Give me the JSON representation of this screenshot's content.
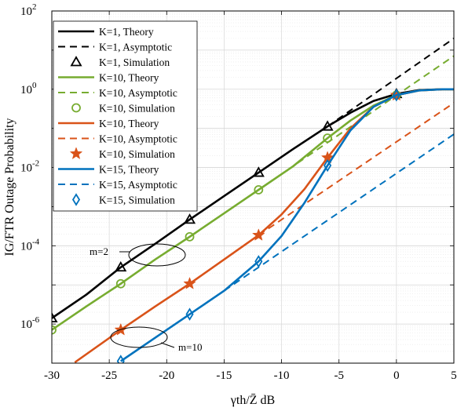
{
  "chart_data": {
    "type": "line",
    "title": "",
    "xlabel": "γth/Z̄ dB",
    "ylabel": "IG/FTR Outage Probability",
    "xlim": [
      -30,
      5
    ],
    "ylim_log10": [
      -7,
      2
    ],
    "y_scale": "log",
    "grid": true,
    "legend_placement": "top-left",
    "x_ticks": [
      "-30",
      "-25",
      "-20",
      "-15",
      "-10",
      "-5",
      "0",
      "5"
    ],
    "y_ticks": [
      {
        "base": "10",
        "exp": "2",
        "log10": 2
      },
      {
        "base": "10",
        "exp": "0",
        "log10": 0
      },
      {
        "base": "10",
        "exp": "-2",
        "log10": -2
      },
      {
        "base": "10",
        "exp": "-4",
        "log10": -4
      },
      {
        "base": "10",
        "exp": "-6",
        "log10": -6
      }
    ],
    "colors": {
      "k1": "#000000",
      "k10a": "#77ac30",
      "k10b": "#d95319",
      "k15": "#0072bd"
    },
    "series": [
      {
        "name": "K=1, Theory",
        "style": "solid",
        "color": "#000000",
        "x": [
          -30,
          -27,
          -24,
          -21,
          -18,
          -15,
          -12,
          -9,
          -6,
          -4,
          -2,
          0,
          2,
          4,
          5
        ],
        "y": [
          -5.85,
          -5.25,
          -4.55,
          -3.95,
          -3.33,
          -2.73,
          -2.13,
          -1.53,
          -0.95,
          -0.6,
          -0.3,
          -0.12,
          -0.02,
          0,
          0
        ]
      },
      {
        "name": "K=1, Asymptotic",
        "style": "dashed",
        "color": "#000000",
        "x": [
          -6,
          5
        ],
        "y": [
          -0.95,
          1.3
        ]
      },
      {
        "name": "K=1, Simulation",
        "marker": "triangle",
        "color": "#000000",
        "x": [
          -30,
          -24,
          -18,
          -12,
          -6,
          0
        ],
        "y": [
          -5.85,
          -4.55,
          -3.33,
          -2.13,
          -0.95,
          -0.12
        ]
      },
      {
        "name": "K=10, Theory",
        "style": "solid",
        "color": "#77ac30",
        "x": [
          -30,
          -27,
          -24,
          -21,
          -18,
          -15,
          -12,
          -9,
          -6,
          -4,
          -2,
          0,
          2,
          4,
          5
        ],
        "y": [
          -6.15,
          -5.55,
          -4.97,
          -4.35,
          -3.77,
          -3.17,
          -2.57,
          -1.97,
          -1.25,
          -0.8,
          -0.42,
          -0.15,
          -0.03,
          0,
          0
        ]
      },
      {
        "name": "K=10, Asymptotic",
        "style": "dashed",
        "color": "#77ac30",
        "x": [
          -12,
          5
        ],
        "y": [
          -2.57,
          0.85
        ]
      },
      {
        "name": "K=10, Simulation",
        "marker": "circle",
        "color": "#77ac30",
        "x": [
          -30,
          -24,
          -18,
          -12,
          -6,
          0
        ],
        "y": [
          -6.15,
          -4.97,
          -3.77,
          -2.57,
          -1.25,
          -0.15
        ]
      },
      {
        "name": "K=10, Theory",
        "style": "solid",
        "color": "#d95319",
        "x": [
          -28,
          -24,
          -21,
          -18,
          -15,
          -12,
          -10,
          -8,
          -6,
          -4,
          -2,
          0,
          2,
          4,
          5
        ],
        "y": [
          -6.98,
          -6.15,
          -5.55,
          -4.97,
          -4.35,
          -3.73,
          -3.2,
          -2.55,
          -1.75,
          -1.0,
          -0.45,
          -0.15,
          -0.03,
          0,
          0
        ]
      },
      {
        "name": "K=10, Asymptotic",
        "style": "dashed",
        "color": "#d95319",
        "x": [
          -12,
          5
        ],
        "y": [
          -3.73,
          -0.35
        ]
      },
      {
        "name": "K=10, Simulation",
        "marker": "star",
        "color": "#d95319",
        "x": [
          -24,
          -18,
          -12,
          -6,
          0
        ],
        "y": [
          -6.15,
          -4.97,
          -3.73,
          -1.75,
          -0.15
        ]
      },
      {
        "name": "K=15, Theory",
        "style": "solid",
        "color": "#0072bd",
        "x": [
          -24,
          -21,
          -18,
          -15,
          -12,
          -10,
          -8,
          -6,
          -4,
          -2,
          0,
          2,
          4,
          5
        ],
        "y": [
          -6.95,
          -6.35,
          -5.75,
          -5.15,
          -4.4,
          -3.75,
          -2.9,
          -1.95,
          -1.05,
          -0.45,
          -0.15,
          -0.03,
          0,
          0
        ]
      },
      {
        "name": "K=15, Asymptotic",
        "style": "dashed",
        "color": "#0072bd",
        "x": [
          -15,
          5
        ],
        "y": [
          -5.15,
          -1.15
        ]
      },
      {
        "name": "K=15, Simulation",
        "marker": "diamond",
        "color": "#0072bd",
        "x": [
          -24,
          -18,
          -12,
          -6,
          0
        ],
        "y": [
          -6.95,
          -5.75,
          -4.4,
          -1.95,
          -0.15
        ]
      }
    ],
    "annotations": [
      {
        "text": "m=2",
        "ellipse_center": [
          -21,
          -4.0
        ]
      },
      {
        "text": "m=10",
        "ellipse_center": [
          -23.5,
          -6.2
        ]
      }
    ]
  }
}
